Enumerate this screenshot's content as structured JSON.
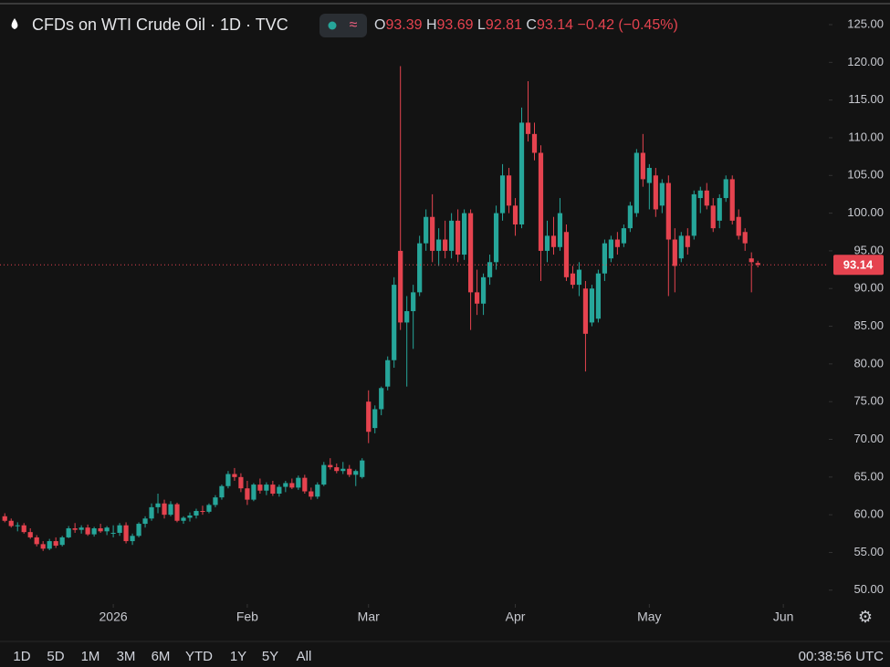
{
  "header": {
    "title": "CFDs on WTI Crude Oil · 1D · TVC",
    "ohlc": [
      {
        "key": "O",
        "value": 93.39
      },
      {
        "key": "H",
        "value": 93.69
      },
      {
        "key": "L",
        "value": 92.81
      },
      {
        "key": "C",
        "value": 93.14
      }
    ],
    "change": "−0.42 (−0.45%)"
  },
  "chart_data": {
    "type": "candlestick",
    "up_color": "#26a69a",
    "down_color": "#e5434f",
    "open": [
      59.8,
      59.2,
      58.5,
      58.6,
      57.7,
      57.0,
      56.1,
      55.5,
      56.5,
      56.0,
      57.0,
      58.2,
      58.0,
      58.3,
      57.4,
      58.2,
      57.8,
      57.5,
      57.6,
      58.6,
      56.5,
      57.2,
      58.8,
      59.5,
      61.0,
      61.5,
      60.0,
      61.4,
      59.2,
      59.6,
      59.9,
      60.5,
      60.4,
      61.3,
      62.3,
      63.8,
      65.4,
      65.0,
      63.5,
      62.0,
      64.0,
      63.2,
      64.0,
      62.8,
      63.7,
      64.2,
      63.6,
      64.9,
      63.1,
      62.4,
      64.0,
      66.6,
      66.3,
      65.8,
      66.1,
      65.3,
      65.0,
      75.0,
      71.5,
      74.0,
      77.0,
      80.5,
      95.0,
      85.5,
      87.0,
      89.5,
      96.0,
      99.5,
      95.0,
      96.5,
      95.0,
      99.0,
      94.5,
      100.0,
      89.5,
      88.0,
      91.5,
      93.5,
      100.0,
      105.0,
      101.0,
      98.5,
      112.0,
      110.5,
      108.0,
      95.0,
      97.0,
      95.5,
      97.5,
      92.0,
      90.5,
      90.0,
      85.5,
      86.0,
      92.0,
      94.0,
      96.5,
      96.0,
      98.0,
      100.0,
      108.0,
      104.0,
      105.0,
      101.0,
      104.0,
      96.5,
      94.0,
      97.0,
      97.0,
      102.0,
      103.0,
      101.0,
      99.0,
      102.0,
      104.5,
      99.5,
      97.5,
      94.0,
      93.39
    ],
    "high": [
      60.2,
      59.5,
      59.0,
      58.9,
      58.2,
      57.3,
      56.5,
      56.8,
      57.0,
      57.2,
      58.5,
      58.9,
      58.6,
      58.7,
      58.4,
      58.8,
      58.5,
      58.6,
      58.9,
      59.0,
      57.5,
      59.0,
      59.8,
      61.5,
      62.8,
      62.0,
      61.8,
      61.6,
      59.8,
      60.3,
      60.8,
      61.2,
      61.5,
      62.6,
      64.0,
      65.8,
      66.2,
      65.5,
      64.5,
      64.2,
      64.8,
      64.3,
      64.5,
      64.0,
      64.5,
      64.8,
      65.2,
      65.3,
      63.6,
      64.3,
      67.0,
      67.5,
      66.8,
      67.0,
      66.6,
      66.0,
      67.5,
      76.5,
      74.5,
      77.0,
      81.0,
      91.5,
      119.5,
      89.0,
      90.5,
      97.0,
      100.5,
      102.5,
      98.0,
      99.0,
      100.0,
      100.5,
      100.5,
      100.5,
      92.5,
      92.0,
      94.5,
      101.0,
      106.5,
      106.0,
      102.0,
      114.0,
      117.5,
      112.0,
      109.0,
      99.0,
      99.5,
      102.0,
      98.5,
      93.0,
      93.5,
      91.0,
      90.5,
      92.5,
      96.5,
      97.0,
      97.5,
      98.5,
      101.5,
      108.5,
      110.5,
      106.5,
      106.0,
      104.5,
      105.0,
      98.0,
      97.5,
      98.0,
      103.0,
      103.5,
      104.0,
      102.0,
      102.5,
      105.0,
      105.0,
      100.5,
      98.0,
      94.8,
      93.69
    ],
    "low": [
      59.0,
      58.3,
      57.8,
      57.5,
      56.8,
      55.8,
      55.2,
      55.3,
      55.6,
      55.8,
      56.9,
      57.6,
      57.5,
      57.2,
      57.1,
      57.6,
      57.3,
      57.0,
      57.2,
      56.2,
      56.0,
      57.0,
      58.3,
      59.2,
      60.2,
      59.5,
      59.8,
      59.0,
      58.8,
      59.1,
      59.5,
      60.0,
      60.2,
      61.0,
      62.0,
      63.5,
      64.5,
      63.0,
      61.3,
      61.8,
      62.8,
      62.6,
      62.5,
      62.4,
      63.0,
      63.4,
      63.3,
      62.8,
      62.0,
      62.1,
      63.8,
      66.0,
      65.5,
      65.4,
      65.0,
      63.8,
      64.8,
      69.5,
      70.8,
      73.2,
      76.5,
      79.5,
      84.5,
      77.0,
      82.0,
      89.0,
      95.0,
      93.5,
      93.0,
      94.0,
      94.0,
      93.5,
      93.8,
      84.5,
      86.5,
      86.5,
      90.5,
      92.5,
      99.0,
      100.0,
      97.0,
      98.0,
      109.5,
      107.0,
      91.0,
      93.5,
      94.5,
      95.0,
      91.0,
      90.0,
      89.0,
      79.0,
      85.0,
      85.5,
      91.0,
      93.5,
      94.5,
      95.5,
      97.5,
      99.5,
      103.5,
      100.5,
      99.5,
      100.0,
      89.0,
      89.5,
      93.5,
      94.5,
      96.5,
      100.0,
      100.5,
      97.5,
      98.0,
      101.5,
      98.5,
      96.5,
      95.0,
      89.5,
      92.81
    ],
    "close": [
      59.2,
      58.5,
      58.6,
      57.7,
      57.0,
      56.1,
      55.5,
      56.5,
      55.9,
      57.0,
      58.2,
      58.0,
      58.3,
      57.4,
      58.2,
      57.8,
      58.3,
      57.6,
      58.6,
      56.5,
      57.2,
      58.8,
      59.5,
      61.0,
      61.5,
      60.0,
      61.4,
      59.2,
      59.6,
      59.9,
      60.5,
      60.4,
      61.3,
      62.3,
      63.8,
      65.4,
      65.0,
      63.5,
      62.0,
      64.0,
      63.2,
      64.0,
      62.8,
      63.7,
      64.2,
      63.6,
      64.9,
      63.1,
      62.4,
      64.0,
      66.6,
      66.3,
      65.8,
      66.1,
      65.3,
      65.8,
      67.2,
      71.0,
      74.0,
      76.8,
      80.5,
      90.5,
      85.5,
      87.0,
      89.5,
      96.0,
      99.5,
      95.0,
      96.5,
      95.0,
      99.0,
      94.5,
      100.0,
      89.5,
      88.0,
      91.5,
      93.5,
      100.0,
      105.0,
      101.0,
      98.5,
      112.0,
      110.5,
      108.0,
      95.0,
      97.0,
      95.5,
      100.0,
      91.5,
      90.5,
      92.5,
      84.0,
      90.0,
      92.0,
      96.0,
      96.5,
      95.5,
      98.0,
      101.0,
      108.0,
      104.5,
      106.0,
      100.5,
      104.0,
      96.5,
      93.0,
      97.0,
      95.5,
      102.5,
      103.0,
      101.0,
      98.0,
      102.0,
      104.5,
      99.0,
      97.0,
      96.0,
      93.5,
      93.14
    ],
    "xlim": [
      -0.75,
      128.7
    ],
    "xticks": [
      {
        "value": 17,
        "label": "2026"
      },
      {
        "value": 38,
        "label": "Feb"
      },
      {
        "value": 57,
        "label": "Mar"
      },
      {
        "value": 80,
        "label": "Apr"
      },
      {
        "value": 101,
        "label": "May"
      },
      {
        "value": 122,
        "label": "Jun"
      }
    ],
    "ylim": [
      48.4,
      127.3
    ],
    "yticks": [
      {
        "value": 50,
        "label": "50.00"
      },
      {
        "value": 55,
        "label": "55.00"
      },
      {
        "value": 60,
        "label": "60.00"
      },
      {
        "value": 65,
        "label": "65.00"
      },
      {
        "value": 70,
        "label": "70.00"
      },
      {
        "value": 75,
        "label": "75.00"
      },
      {
        "value": 80,
        "label": "80.00"
      },
      {
        "value": 85,
        "label": "85.00"
      },
      {
        "value": 90,
        "label": "90.00"
      },
      {
        "value": 95,
        "label": "95.00"
      },
      {
        "value": 100,
        "label": "100.00"
      },
      {
        "value": 105,
        "label": "105.00"
      },
      {
        "value": 110,
        "label": "110.00"
      },
      {
        "value": 115,
        "label": "115.00"
      },
      {
        "value": 120,
        "label": "120.00"
      },
      {
        "value": 125,
        "label": "125.00"
      }
    ],
    "last_price": 93.14
  },
  "toolbar": {
    "ranges": [
      "1D",
      "5D",
      "1M",
      "3M",
      "6M",
      "YTD",
      "1Y",
      "5Y",
      "All"
    ],
    "clock": "00:38:56 UTC"
  }
}
